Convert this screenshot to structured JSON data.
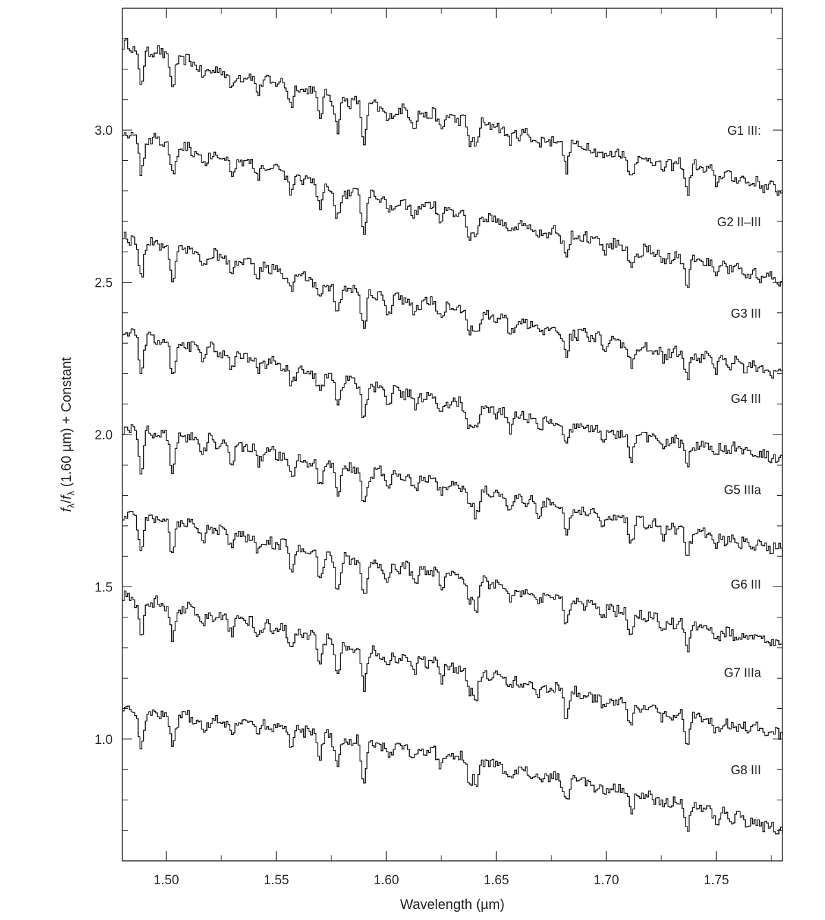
{
  "chart_data": {
    "type": "line",
    "title": "",
    "xlabel": "Wavelength (µm)",
    "ylabel_parts": {
      "f1": "f",
      "sub1": "λ",
      "slash": "/",
      "f2": "f",
      "sub2": "λ",
      "rest": " (1.60 µm) + Constant"
    },
    "xlim": [
      1.48,
      1.78
    ],
    "ylim": [
      0.6,
      3.4
    ],
    "x_major_ticks": [
      1.5,
      1.55,
      1.6,
      1.65,
      1.7,
      1.75
    ],
    "x_tick_labels": [
      "1.50",
      "1.55",
      "1.60",
      "1.65",
      "1.70",
      "1.75"
    ],
    "y_major_ticks": [
      1.0,
      1.5,
      2.0,
      2.5,
      3.0
    ],
    "y_tick_labels": [
      "1.0",
      "1.5",
      "2.0",
      "2.5",
      "3.0"
    ],
    "grid": false,
    "absorption_lines_um": [
      1.4882,
      1.5025,
      1.5165,
      1.5295,
      1.5415,
      1.5565,
      1.5695,
      1.5775,
      1.5895,
      1.6005,
      1.6125,
      1.6245,
      1.6375,
      1.6405,
      1.656,
      1.669,
      1.6815,
      1.6985,
      1.711,
      1.7255,
      1.7365,
      1.7495
    ],
    "series": [
      {
        "name": "G1 III:",
        "start": 3.28,
        "end": 2.8,
        "x": [
          1.48,
          1.5,
          1.52,
          1.54,
          1.56,
          1.58,
          1.6,
          1.62,
          1.64,
          1.66,
          1.68,
          1.7,
          1.72,
          1.74,
          1.76,
          1.78
        ],
        "values": [
          3.28,
          3.25,
          3.2,
          3.17,
          3.14,
          3.1,
          3.07,
          3.05,
          3.03,
          2.99,
          2.96,
          2.93,
          2.9,
          2.88,
          2.84,
          2.8
        ]
      },
      {
        "name": "G2 II–III",
        "start": 2.99,
        "end": 2.5,
        "x": [
          1.48,
          1.5,
          1.52,
          1.54,
          1.56,
          1.58,
          1.6,
          1.62,
          1.64,
          1.66,
          1.68,
          1.7,
          1.72,
          1.74,
          1.76,
          1.78
        ],
        "values": [
          2.99,
          2.96,
          2.92,
          2.89,
          2.84,
          2.8,
          2.77,
          2.75,
          2.72,
          2.69,
          2.66,
          2.63,
          2.6,
          2.57,
          2.54,
          2.5
        ]
      },
      {
        "name": "G3 III",
        "start": 2.65,
        "end": 2.2,
        "x": [
          1.48,
          1.5,
          1.52,
          1.54,
          1.56,
          1.58,
          1.6,
          1.62,
          1.64,
          1.66,
          1.68,
          1.7,
          1.72,
          1.74,
          1.76,
          1.78
        ],
        "values": [
          2.65,
          2.62,
          2.59,
          2.56,
          2.52,
          2.48,
          2.45,
          2.43,
          2.4,
          2.37,
          2.34,
          2.31,
          2.28,
          2.26,
          2.23,
          2.2
        ]
      },
      {
        "name": "G4 III",
        "start": 2.34,
        "end": 1.92,
        "x": [
          1.48,
          1.5,
          1.52,
          1.54,
          1.56,
          1.58,
          1.6,
          1.62,
          1.64,
          1.66,
          1.68,
          1.7,
          1.72,
          1.74,
          1.76,
          1.78
        ],
        "values": [
          2.34,
          2.31,
          2.28,
          2.25,
          2.21,
          2.18,
          2.15,
          2.12,
          2.09,
          2.06,
          2.04,
          2.01,
          1.99,
          1.97,
          1.95,
          1.92
        ]
      },
      {
        "name": "G5 IIIa",
        "start": 2.02,
        "end": 1.62,
        "x": [
          1.48,
          1.5,
          1.52,
          1.54,
          1.56,
          1.58,
          1.6,
          1.62,
          1.64,
          1.66,
          1.68,
          1.7,
          1.72,
          1.74,
          1.76,
          1.78
        ],
        "values": [
          2.02,
          2.0,
          1.98,
          1.95,
          1.92,
          1.89,
          1.87,
          1.85,
          1.82,
          1.79,
          1.76,
          1.73,
          1.71,
          1.68,
          1.65,
          1.62
        ]
      },
      {
        "name": "G6 III",
        "start": 1.74,
        "end": 1.31,
        "x": [
          1.48,
          1.5,
          1.52,
          1.54,
          1.56,
          1.58,
          1.6,
          1.62,
          1.64,
          1.66,
          1.68,
          1.7,
          1.72,
          1.74,
          1.76,
          1.78
        ],
        "values": [
          1.74,
          1.72,
          1.69,
          1.66,
          1.62,
          1.59,
          1.57,
          1.55,
          1.52,
          1.49,
          1.46,
          1.43,
          1.4,
          1.37,
          1.34,
          1.31
        ]
      },
      {
        "name": "G7 IIIa",
        "start": 1.47,
        "end": 1.02,
        "x": [
          1.48,
          1.5,
          1.52,
          1.54,
          1.56,
          1.58,
          1.6,
          1.62,
          1.64,
          1.66,
          1.68,
          1.7,
          1.72,
          1.74,
          1.76,
          1.78
        ],
        "values": [
          1.47,
          1.44,
          1.41,
          1.38,
          1.35,
          1.31,
          1.28,
          1.25,
          1.22,
          1.19,
          1.16,
          1.13,
          1.1,
          1.07,
          1.04,
          1.02
        ]
      },
      {
        "name": "G8 III",
        "start": 1.1,
        "end": 0.7,
        "x": [
          1.48,
          1.5,
          1.52,
          1.54,
          1.56,
          1.58,
          1.6,
          1.62,
          1.64,
          1.66,
          1.68,
          1.7,
          1.72,
          1.74,
          1.76,
          1.78
        ],
        "values": [
          1.1,
          1.08,
          1.06,
          1.05,
          1.03,
          1.0,
          0.98,
          0.96,
          0.93,
          0.9,
          0.87,
          0.84,
          0.81,
          0.78,
          0.74,
          0.7
        ]
      }
    ]
  }
}
